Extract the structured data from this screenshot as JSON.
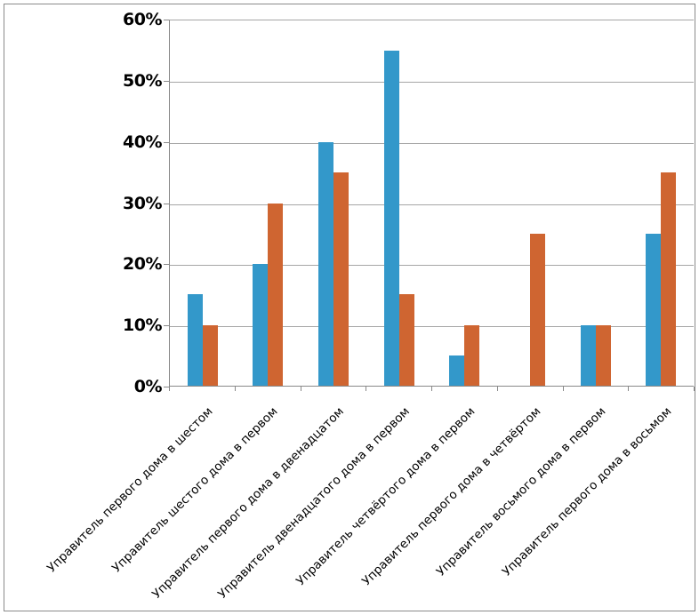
{
  "chart_data": {
    "type": "bar",
    "title": "",
    "xlabel": "",
    "ylabel": "",
    "categories": [
      "Управитель первого дома в шестом",
      "Управитель шестого дома в первом",
      "Управитель первого дома в двенадцатом",
      "Управитель двенадцатого дома в первом",
      "Управитель четвёртого дома в первом",
      "Управитель первого дома в четвёртом",
      "Управитель восьмого дома в первом",
      "Управитель первого дома в восьмом"
    ],
    "series": [
      {
        "name": "blue-series",
        "color": "#3398ca",
        "values": [
          15,
          20,
          40,
          55,
          5,
          0,
          10,
          25
        ]
      },
      {
        "name": "orange-series",
        "color": "#cf6531",
        "values": [
          10,
          30,
          35,
          15,
          10,
          25,
          10,
          35
        ]
      }
    ],
    "ylim": [
      0,
      60
    ],
    "y_tick_step": 10,
    "y_tick_labels": [
      "0%",
      "10%",
      "20%",
      "30%",
      "40%",
      "50%",
      "60%"
    ],
    "grid": true,
    "legend_position": "none"
  },
  "style_colors": {
    "gridline": "#a6a6a6",
    "axis": "#898989",
    "frame_border": "#8a8a8a",
    "text": "#000000"
  }
}
